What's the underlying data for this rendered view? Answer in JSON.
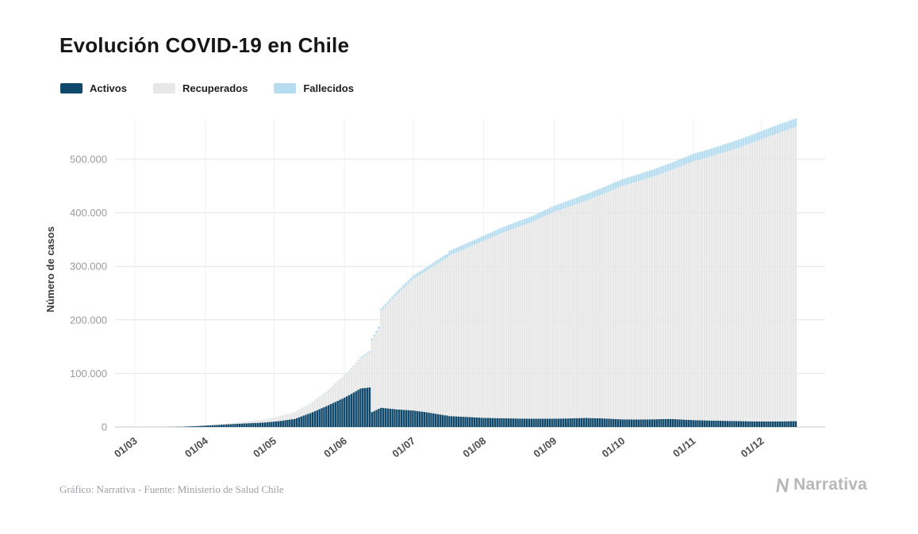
{
  "chart_data": {
    "type": "bar",
    "stacked": true,
    "title": "Evolución COVID-19 en Chile",
    "xlabel": "",
    "ylabel": "Número de casos",
    "ylim": [
      0,
      575000
    ],
    "grid": true,
    "legend_position": "top-left",
    "y_ticks": [
      {
        "value": 0,
        "label": "0"
      },
      {
        "value": 100000,
        "label": "100.000"
      },
      {
        "value": 200000,
        "label": "200.000"
      },
      {
        "value": 300000,
        "label": "300.000"
      },
      {
        "value": 400000,
        "label": "400.000"
      },
      {
        "value": 500000,
        "label": "500.000"
      }
    ],
    "x_ticks": [
      "01/03",
      "01/04",
      "01/05",
      "01/06",
      "01/07",
      "01/08",
      "01/09",
      "01/10",
      "01/11",
      "01/12"
    ],
    "series_meta": [
      {
        "name": "Activos",
        "color": "#10486b"
      },
      {
        "name": "Recuperados",
        "color": "#e7e7e7"
      },
      {
        "name": "Fallecidos",
        "color": "#b5ddef"
      }
    ],
    "points": [
      {
        "date": "01/03",
        "activos": 1,
        "recuperados": 0,
        "fallecidos": 0
      },
      {
        "date": "08/03",
        "activos": 10,
        "recuperados": 0,
        "fallecidos": 0
      },
      {
        "date": "15/03",
        "activos": 75,
        "recuperados": 0,
        "fallecidos": 0
      },
      {
        "date": "22/03",
        "activos": 590,
        "recuperados": 40,
        "fallecidos": 2
      },
      {
        "date": "29/03",
        "activos": 2060,
        "recuperados": 310,
        "fallecidos": 8
      },
      {
        "date": "05/04",
        "activos": 3800,
        "recuperados": 680,
        "fallecidos": 34
      },
      {
        "date": "12/04",
        "activos": 5430,
        "recuperados": 1670,
        "fallecidos": 78
      },
      {
        "date": "19/04",
        "activos": 6970,
        "recuperados": 3100,
        "fallecidos": 133
      },
      {
        "date": "26/04",
        "activos": 8260,
        "recuperados": 4980,
        "fallecidos": 181
      },
      {
        "date": "03/05",
        "activos": 10980,
        "recuperados": 8580,
        "fallecidos": 247
      },
      {
        "date": "10/05",
        "activos": 15120,
        "recuperados": 12160,
        "fallecidos": 323
      },
      {
        "date": "17/05",
        "activos": 26000,
        "recuperados": 18000,
        "fallecidos": 480
      },
      {
        "date": "24/05",
        "activos": 39000,
        "recuperados": 26500,
        "fallecidos": 725
      },
      {
        "date": "31/05",
        "activos": 53000,
        "recuperados": 39000,
        "fallecidos": 1000
      },
      {
        "date": "04/06",
        "activos": 62000,
        "recuperados": 47000,
        "fallecidos": 1200
      },
      {
        "date": "08/06",
        "activos": 72000,
        "recuperados": 57000,
        "fallecidos": 1600
      },
      {
        "date": "12/06",
        "activos": 74000,
        "recuperados": 65000,
        "fallecidos": 2650
      },
      {
        "date": "13/06",
        "activos": 28000,
        "recuperados": 134000,
        "fallecidos": 3100
      },
      {
        "date": "16/06",
        "activos": 34000,
        "recuperados": 150000,
        "fallecidos": 3700
      },
      {
        "date": "17/06",
        "activos": 36000,
        "recuperados": 181000,
        "fallecidos": 4100
      },
      {
        "date": "24/06",
        "activos": 33000,
        "recuperados": 215000,
        "fallecidos": 4900
      },
      {
        "date": "01/07",
        "activos": 31000,
        "recuperados": 245400,
        "fallecidos": 5750
      },
      {
        "date": "08/07",
        "activos": 27000,
        "recuperados": 268000,
        "fallecidos": 6400
      },
      {
        "date": "15/07",
        "activos": 22000,
        "recuperados": 292000,
        "fallecidos": 7200
      },
      {
        "date": "16/07",
        "activos": 21500,
        "recuperados": 294000,
        "fallecidos": 7300
      },
      {
        "date": "17/07",
        "activos": 20500,
        "recuperados": 300000,
        "fallecidos": 8400
      },
      {
        "date": "24/07",
        "activos": 19000,
        "recuperados": 314000,
        "fallecidos": 9000
      },
      {
        "date": "01/08",
        "activos": 17200,
        "recuperados": 330500,
        "fallecidos": 9530
      },
      {
        "date": "08/08",
        "activos": 16500,
        "recuperados": 344000,
        "fallecidos": 10000
      },
      {
        "date": "15/08",
        "activos": 16000,
        "recuperados": 356000,
        "fallecidos": 10400
      },
      {
        "date": "22/08",
        "activos": 15500,
        "recuperados": 367000,
        "fallecidos": 10700
      },
      {
        "date": "01/09",
        "activos": 15600,
        "recuperados": 386200,
        "fallecidos": 11320
      },
      {
        "date": "08/09",
        "activos": 16200,
        "recuperados": 396000,
        "fallecidos": 11600
      },
      {
        "date": "15/09",
        "activos": 17000,
        "recuperados": 406000,
        "fallecidos": 12000
      },
      {
        "date": "22/09",
        "activos": 16200,
        "recuperados": 418000,
        "fallecidos": 12300
      },
      {
        "date": "01/10",
        "activos": 14300,
        "recuperados": 435900,
        "fallecidos": 12740
      },
      {
        "date": "08/10",
        "activos": 14000,
        "recuperados": 445000,
        "fallecidos": 13000
      },
      {
        "date": "15/10",
        "activos": 14500,
        "recuperados": 454000,
        "fallecidos": 13300
      },
      {
        "date": "22/10",
        "activos": 15200,
        "recuperados": 464000,
        "fallecidos": 13600
      },
      {
        "date": "01/11",
        "activos": 12900,
        "recuperados": 483100,
        "fallecidos": 14200
      },
      {
        "date": "08/11",
        "activos": 12200,
        "recuperados": 492000,
        "fallecidos": 14400
      },
      {
        "date": "15/11",
        "activos": 11600,
        "recuperados": 502000,
        "fallecidos": 14700
      },
      {
        "date": "22/11",
        "activos": 11000,
        "recuperados": 512000,
        "fallecidos": 15000
      },
      {
        "date": "01/12",
        "activos": 10400,
        "recuperados": 527000,
        "fallecidos": 15430
      },
      {
        "date": "08/12",
        "activos": 10600,
        "recuperados": 538000,
        "fallecidos": 15680
      },
      {
        "date": "16/12",
        "activos": 11000,
        "recuperados": 549400,
        "fallecidos": 15950
      }
    ]
  },
  "footer": {
    "credit": "Gráfico: Narrativa - Fuente: Ministerio de Salud Chile",
    "brand": "Narrativa"
  }
}
